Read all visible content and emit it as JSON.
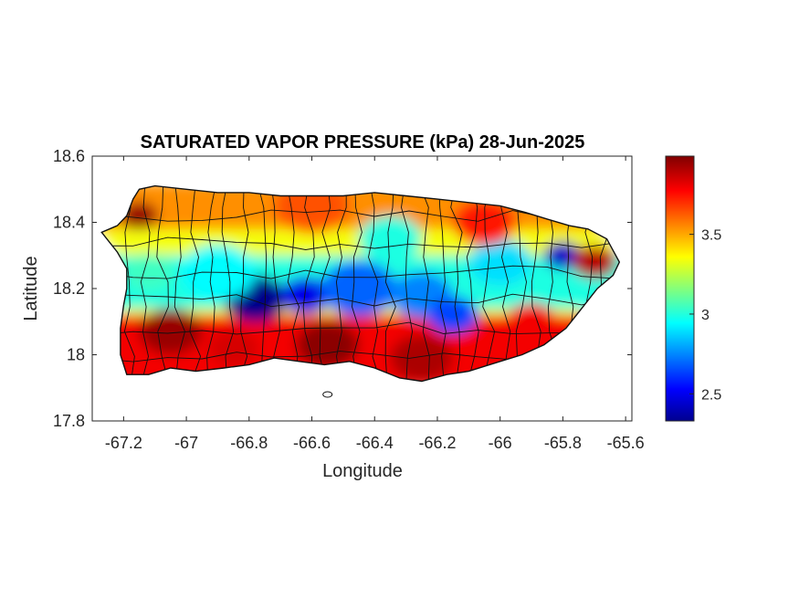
{
  "chart_data": {
    "type": "heatmap",
    "title": "SATURATED VAPOR PRESSURE (kPa) 28-Jun-2025",
    "xlabel": "Longitude",
    "ylabel": "Latitude",
    "xlim": [
      -67.3,
      -65.58
    ],
    "ylim": [
      17.8,
      18.6
    ],
    "x_ticks": [
      -67.2,
      -67,
      -66.8,
      -66.6,
      -66.4,
      -66.2,
      -66,
      -65.8,
      -65.6
    ],
    "x_tick_labels": [
      "-67.2",
      "-67",
      "-66.8",
      "-66.6",
      "-66.4",
      "-66.2",
      "-66",
      "-65.8",
      "-65.6"
    ],
    "y_ticks": [
      17.8,
      18,
      18.2,
      18.4,
      18.6
    ],
    "y_tick_labels": [
      "17.8",
      "18",
      "18.2",
      "18.4",
      "18.6"
    ],
    "colorbar": {
      "colormap": "jet",
      "range": [
        2.33,
        3.99
      ],
      "ticks": [
        2.5,
        3,
        3.5
      ],
      "tick_labels": [
        "2.5",
        "3",
        "3.5"
      ]
    },
    "region_outline_lonlat": [
      [
        -67.27,
        18.37
      ],
      [
        -67.22,
        18.39
      ],
      [
        -67.19,
        18.42
      ],
      [
        -67.17,
        18.47
      ],
      [
        -67.15,
        18.5
      ],
      [
        -67.1,
        18.51
      ],
      [
        -67.0,
        18.5
      ],
      [
        -66.9,
        18.49
      ],
      [
        -66.8,
        18.49
      ],
      [
        -66.7,
        18.48
      ],
      [
        -66.6,
        18.48
      ],
      [
        -66.5,
        18.48
      ],
      [
        -66.4,
        18.49
      ],
      [
        -66.3,
        18.48
      ],
      [
        -66.2,
        18.47
      ],
      [
        -66.1,
        18.46
      ],
      [
        -66.0,
        18.45
      ],
      [
        -65.92,
        18.43
      ],
      [
        -65.85,
        18.41
      ],
      [
        -65.78,
        18.39
      ],
      [
        -65.72,
        18.38
      ],
      [
        -65.66,
        18.35
      ],
      [
        -65.62,
        18.28
      ],
      [
        -65.64,
        18.24
      ],
      [
        -65.69,
        18.2
      ],
      [
        -65.74,
        18.14
      ],
      [
        -65.79,
        18.08
      ],
      [
        -65.86,
        18.03
      ],
      [
        -65.93,
        18.0
      ],
      [
        -66.0,
        17.98
      ],
      [
        -66.1,
        17.95
      ],
      [
        -66.17,
        17.94
      ],
      [
        -66.25,
        17.92
      ],
      [
        -66.32,
        17.93
      ],
      [
        -66.4,
        17.96
      ],
      [
        -66.48,
        17.98
      ],
      [
        -66.56,
        17.97
      ],
      [
        -66.64,
        17.98
      ],
      [
        -66.72,
        17.99
      ],
      [
        -66.8,
        17.97
      ],
      [
        -66.88,
        17.96
      ],
      [
        -66.97,
        17.95
      ],
      [
        -67.05,
        17.96
      ],
      [
        -67.12,
        17.94
      ],
      [
        -67.19,
        17.94
      ],
      [
        -67.21,
        18.0
      ],
      [
        -67.21,
        18.08
      ],
      [
        -67.2,
        18.15
      ],
      [
        -67.19,
        18.2
      ],
      [
        -67.19,
        18.26
      ],
      [
        -67.22,
        18.31
      ]
    ],
    "field_features": [
      {
        "lon": -66.78,
        "lat": 18.17,
        "value": 2.35,
        "radius": 0.1
      },
      {
        "lon": -66.62,
        "lat": 18.18,
        "value": 2.5,
        "radius": 0.08
      },
      {
        "lon": -66.45,
        "lat": 18.2,
        "value": 2.7,
        "radius": 0.12
      },
      {
        "lon": -66.25,
        "lat": 18.18,
        "value": 2.75,
        "radius": 0.1
      },
      {
        "lon": -66.15,
        "lat": 18.12,
        "value": 2.65,
        "radius": 0.08
      },
      {
        "lon": -65.8,
        "lat": 18.3,
        "value": 2.45,
        "radius": 0.06
      },
      {
        "lon": -66.0,
        "lat": 18.28,
        "value": 2.9,
        "radius": 0.1
      },
      {
        "lon": -66.9,
        "lat": 18.25,
        "value": 2.95,
        "radius": 0.12
      },
      {
        "lon": -67.12,
        "lat": 18.25,
        "value": 3.05,
        "radius": 0.08
      },
      {
        "lon": -66.35,
        "lat": 18.35,
        "value": 3.0,
        "radius": 0.1
      },
      {
        "lon": -67.05,
        "lat": 18.07,
        "value": 3.95,
        "radius": 0.1
      },
      {
        "lon": -66.55,
        "lat": 18.03,
        "value": 3.97,
        "radius": 0.1
      },
      {
        "lon": -66.25,
        "lat": 17.99,
        "value": 3.92,
        "radius": 0.1
      },
      {
        "lon": -66.85,
        "lat": 18.02,
        "value": 3.85,
        "radius": 0.08
      },
      {
        "lon": -67.15,
        "lat": 18.42,
        "value": 3.95,
        "radius": 0.06
      },
      {
        "lon": -65.7,
        "lat": 18.28,
        "value": 3.9,
        "radius": 0.07
      },
      {
        "lon": -65.9,
        "lat": 18.1,
        "value": 3.8,
        "radius": 0.08
      },
      {
        "lon": -66.05,
        "lat": 18.4,
        "value": 3.75,
        "radius": 0.1
      },
      {
        "lon": -66.6,
        "lat": 18.45,
        "value": 3.65,
        "radius": 0.12
      },
      {
        "lon": -66.95,
        "lat": 18.45,
        "value": 3.55,
        "radius": 0.1
      }
    ]
  }
}
